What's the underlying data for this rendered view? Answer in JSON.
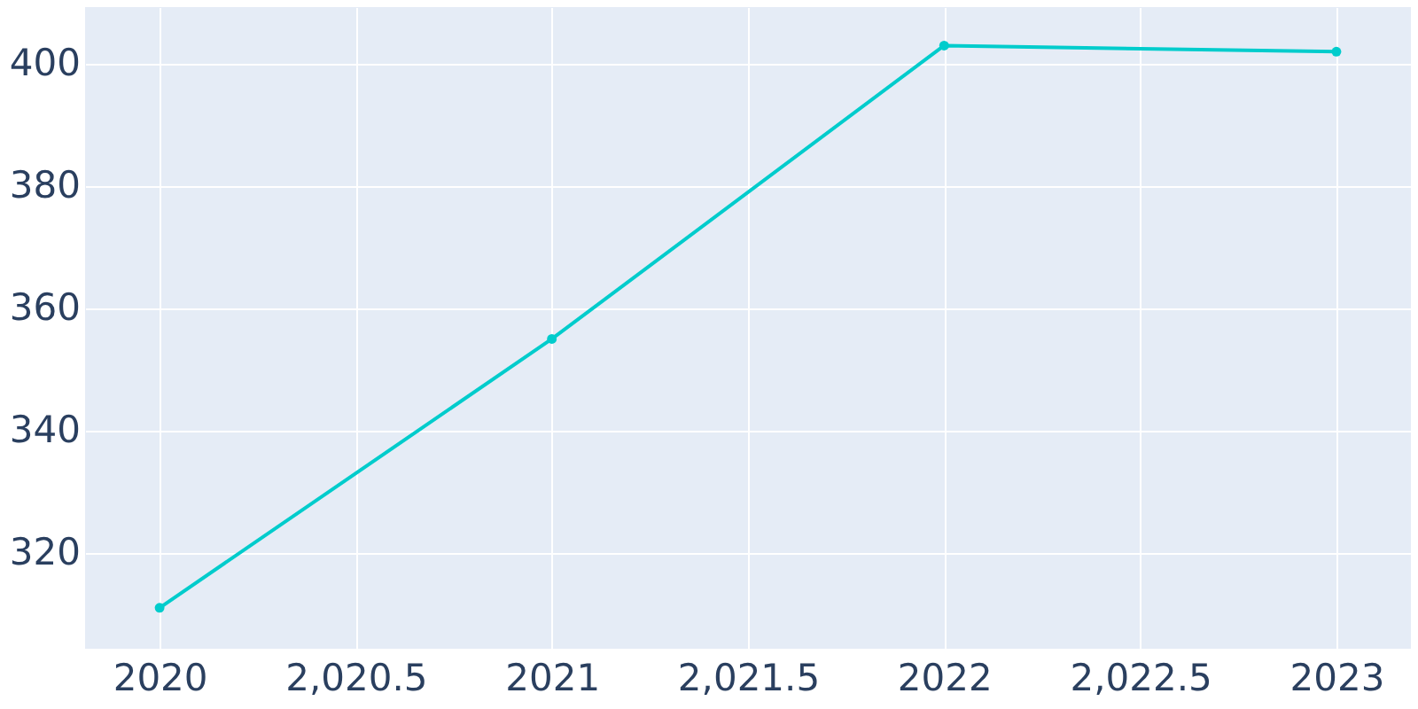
{
  "chart_data": {
    "type": "line",
    "x": [
      2020,
      2021,
      2022,
      2023
    ],
    "series": [
      {
        "color": "#00cccc",
        "values": [
          311,
          355,
          403,
          402
        ]
      }
    ],
    "xlim": [
      2019.81,
      2023.19
    ],
    "ylim": [
      304.3,
      409.3
    ],
    "xticks": [
      2020,
      {
        "value": 2020.5,
        "label": "2,020.5"
      },
      2021,
      {
        "value": 2021.5,
        "label": "2,021.5"
      },
      2022,
      {
        "value": 2022.5,
        "label": "2,022.5"
      },
      2023
    ],
    "yticks": [
      320,
      340,
      360,
      380,
      400
    ],
    "grid": true,
    "marker": "circle",
    "line_style": "solid"
  }
}
